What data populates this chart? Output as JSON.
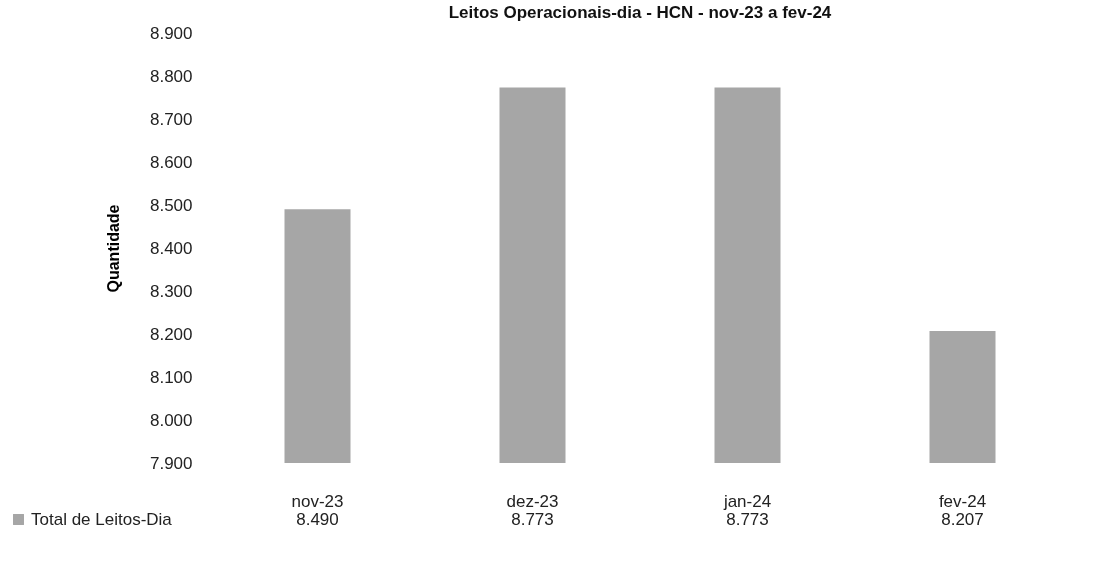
{
  "chart_data": {
    "type": "bar",
    "title": "Leitos Operacionais-dia - HCN - nov-23 a fev-24",
    "ylabel": "Quantidade",
    "categories": [
      "nov-23",
      "dez-23",
      "jan-24",
      "fev-24"
    ],
    "series": [
      {
        "name": "Total de Leitos-Dia",
        "color": "#a6a6a6",
        "values": [
          8490,
          8773,
          8773,
          8207
        ],
        "value_labels": [
          "8.490",
          "8.773",
          "8.773",
          "8.207"
        ]
      }
    ],
    "ylim": [
      7900,
      8900
    ],
    "yticks": [
      {
        "value": 7900,
        "label": "7.900"
      },
      {
        "value": 8000,
        "label": "8.000"
      },
      {
        "value": 8100,
        "label": "8.100"
      },
      {
        "value": 8200,
        "label": "8.200"
      },
      {
        "value": 8300,
        "label": "8.300"
      },
      {
        "value": 8400,
        "label": "8.400"
      },
      {
        "value": 8500,
        "label": "8.500"
      },
      {
        "value": 8600,
        "label": "8.600"
      },
      {
        "value": 8700,
        "label": "8.700"
      },
      {
        "value": 8800,
        "label": "8.800"
      },
      {
        "value": 8900,
        "label": "8.900"
      }
    ],
    "grid": false,
    "legend": "bottom left"
  }
}
